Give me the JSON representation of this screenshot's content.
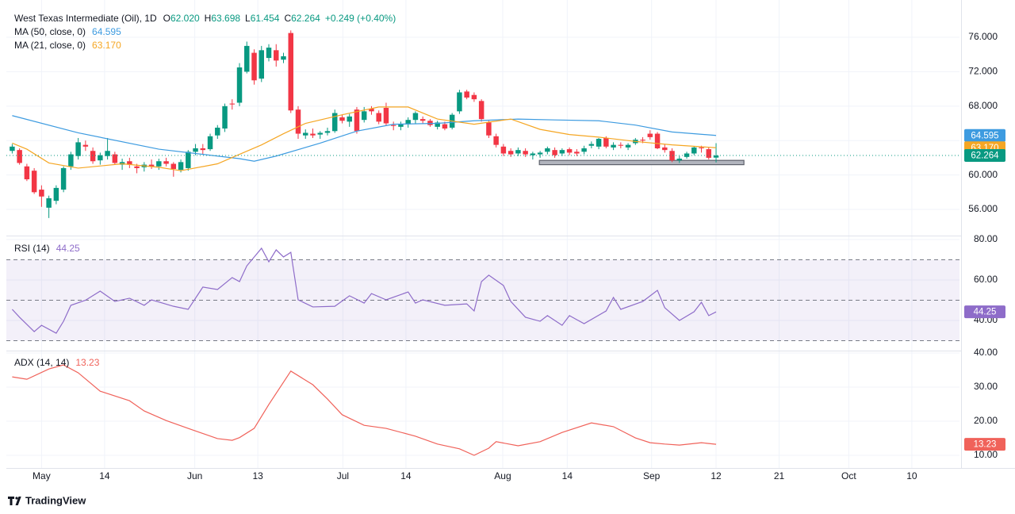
{
  "brand": "TradingView",
  "chart_data": [
    {
      "type": "candlestick",
      "title": "West Texas Intermediate (Oil), 1D",
      "ohlc_labels": [
        "O",
        "H",
        "L",
        "C"
      ],
      "ohlc_value_labels": [
        "62.020",
        "63.698",
        "61.454",
        "62.264"
      ],
      "change_label": "+0.249 (+0.40%)",
      "up_color": "#089981",
      "down_color": "#f23645",
      "x": [
        0,
        1,
        2,
        3,
        4,
        5,
        6,
        7,
        8,
        9,
        10,
        11,
        12,
        13,
        14,
        15,
        16,
        17,
        18,
        19,
        20,
        21,
        22,
        23,
        24,
        25,
        26,
        27,
        28,
        29,
        30,
        31,
        32,
        33,
        34,
        35,
        36,
        37,
        38,
        39,
        40,
        41,
        42,
        43,
        44,
        45,
        46,
        47,
        48,
        49,
        50,
        51,
        52,
        53,
        54,
        55,
        56,
        57,
        58,
        59,
        60,
        61,
        62,
        63,
        64,
        65,
        66,
        67,
        68,
        69,
        70,
        71,
        72,
        73,
        74,
        75,
        76,
        77,
        78,
        79,
        80,
        81,
        82,
        83,
        84,
        85,
        86,
        87,
        88,
        89,
        90,
        91,
        92,
        93,
        94,
        95,
        96
      ],
      "ohlc": [
        [
          62.8,
          63.6,
          62.5,
          63.3
        ],
        [
          62.9,
          63.1,
          61.2,
          61.4
        ],
        [
          61.0,
          61.3,
          59.3,
          59.5
        ],
        [
          60.5,
          60.8,
          57.8,
          58.0
        ],
        [
          58.3,
          58.8,
          56.3,
          57.5
        ],
        [
          56.2,
          57.6,
          55.0,
          57.3
        ],
        [
          57.0,
          58.8,
          56.6,
          58.5
        ],
        [
          58.3,
          61.0,
          58.0,
          60.8
        ],
        [
          61.0,
          62.7,
          60.6,
          62.4
        ],
        [
          62.2,
          64.3,
          61.8,
          63.8
        ],
        [
          63.5,
          64.0,
          62.8,
          63.3
        ],
        [
          62.8,
          63.2,
          61.3,
          61.6
        ],
        [
          61.7,
          62.6,
          61.2,
          62.3
        ],
        [
          62.2,
          64.3,
          61.8,
          62.8
        ],
        [
          62.4,
          62.7,
          61.2,
          61.4
        ],
        [
          61.2,
          61.9,
          60.6,
          61.5
        ],
        [
          61.6,
          62.0,
          60.8,
          61.2
        ],
        [
          61.0,
          61.3,
          60.2,
          60.8
        ],
        [
          60.9,
          61.5,
          60.4,
          61.2
        ],
        [
          61.2,
          61.8,
          60.7,
          61.0
        ],
        [
          61.0,
          61.9,
          60.6,
          61.6
        ],
        [
          61.6,
          62.0,
          61.0,
          61.3
        ],
        [
          61.3,
          61.5,
          59.8,
          60.7
        ],
        [
          60.6,
          61.8,
          60.3,
          61.5
        ],
        [
          60.8,
          62.9,
          60.5,
          62.7
        ],
        [
          62.7,
          63.6,
          62.3,
          63.1
        ],
        [
          63.1,
          63.6,
          62.4,
          62.9
        ],
        [
          63.0,
          64.8,
          62.8,
          64.5
        ],
        [
          64.6,
          65.8,
          64.2,
          65.5
        ],
        [
          65.4,
          68.3,
          65.0,
          68.0
        ],
        [
          68.3,
          68.8,
          67.6,
          68.2
        ],
        [
          68.4,
          73.0,
          68.0,
          72.5
        ],
        [
          72.0,
          75.5,
          71.8,
          75.0
        ],
        [
          74.2,
          74.6,
          70.5,
          71.0
        ],
        [
          71.2,
          75.0,
          70.8,
          74.5
        ],
        [
          73.6,
          75.2,
          73.2,
          74.8
        ],
        [
          74.5,
          75.2,
          72.6,
          73.3
        ],
        [
          73.4,
          74.2,
          73.0,
          73.8
        ],
        [
          76.5,
          76.8,
          67.2,
          67.5
        ],
        [
          67.6,
          68.0,
          64.2,
          64.8
        ],
        [
          64.6,
          65.3,
          64.2,
          64.9
        ],
        [
          64.8,
          65.4,
          64.3,
          64.6
        ],
        [
          64.7,
          65.1,
          64.2,
          64.9
        ],
        [
          64.9,
          65.5,
          64.6,
          65.1
        ],
        [
          65.1,
          67.6,
          64.9,
          67.2
        ],
        [
          66.7,
          67.0,
          66.0,
          66.3
        ],
        [
          66.2,
          67.1,
          65.6,
          66.8
        ],
        [
          67.6,
          67.9,
          64.8,
          65.1
        ],
        [
          66.4,
          67.9,
          66.1,
          67.4
        ],
        [
          67.7,
          68.0,
          67.0,
          67.4
        ],
        [
          67.2,
          67.5,
          65.9,
          66.2
        ],
        [
          67.8,
          68.4,
          65.7,
          66.0
        ],
        [
          65.8,
          66.2,
          65.2,
          65.7
        ],
        [
          65.6,
          66.2,
          65.2,
          65.9
        ],
        [
          65.9,
          66.7,
          65.5,
          66.4
        ],
        [
          66.4,
          67.4,
          66.0,
          67.2
        ],
        [
          66.5,
          66.8,
          66.0,
          66.3
        ],
        [
          66.3,
          66.5,
          65.6,
          65.8
        ],
        [
          65.6,
          66.3,
          65.3,
          66.1
        ],
        [
          65.9,
          66.2,
          65.2,
          65.4
        ],
        [
          65.5,
          67.2,
          65.3,
          67.0
        ],
        [
          67.4,
          69.9,
          67.1,
          69.6
        ],
        [
          69.7,
          69.9,
          68.8,
          69.0
        ],
        [
          69.3,
          69.6,
          68.5,
          68.8
        ],
        [
          68.6,
          68.8,
          66.2,
          66.5
        ],
        [
          66.1,
          66.3,
          64.3,
          64.6
        ],
        [
          64.5,
          64.8,
          63.2,
          63.5
        ],
        [
          63.3,
          63.6,
          62.2,
          62.5
        ],
        [
          62.8,
          63.1,
          62.1,
          62.4
        ],
        [
          62.5,
          63.2,
          62.2,
          62.9
        ],
        [
          62.8,
          63.1,
          62.1,
          62.4
        ],
        [
          62.3,
          62.7,
          61.8,
          62.5
        ],
        [
          62.4,
          62.8,
          62.0,
          62.6
        ],
        [
          62.7,
          63.3,
          62.4,
          63.1
        ],
        [
          62.9,
          63.2,
          62.0,
          62.3
        ],
        [
          62.5,
          63.1,
          62.2,
          62.9
        ],
        [
          63.0,
          63.2,
          62.3,
          62.6
        ],
        [
          62.7,
          63.0,
          62.2,
          62.5
        ],
        [
          62.7,
          63.4,
          62.4,
          63.1
        ],
        [
          63.4,
          63.9,
          63.1,
          63.6
        ],
        [
          63.3,
          64.3,
          63.0,
          64.2
        ],
        [
          64.3,
          64.5,
          63.1,
          63.3
        ],
        [
          63.2,
          63.8,
          62.9,
          63.5
        ],
        [
          63.5,
          63.8,
          63.1,
          63.4
        ],
        [
          63.2,
          63.7,
          62.9,
          63.5
        ],
        [
          63.7,
          64.3,
          63.5,
          64.1
        ],
        [
          64.1,
          64.4,
          63.7,
          64.0
        ],
        [
          64.8,
          65.2,
          64.1,
          64.4
        ],
        [
          64.8,
          65.0,
          63.0,
          63.1
        ],
        [
          63.2,
          63.6,
          62.6,
          62.9
        ],
        [
          62.8,
          63.1,
          61.5,
          61.7
        ],
        [
          61.7,
          62.2,
          61.4,
          61.9
        ],
        [
          62.1,
          62.7,
          61.9,
          62.5
        ],
        [
          62.5,
          63.3,
          62.3,
          63.2
        ],
        [
          63.2,
          63.4,
          62.6,
          63.1
        ],
        [
          63.0,
          63.2,
          61.8,
          62.0
        ],
        [
          62.02,
          63.698,
          61.454,
          62.264
        ]
      ],
      "series": [
        {
          "name": "MA (50, close, 0)",
          "color": "#3d9be0",
          "value_label": "64.595",
          "x": [
            0,
            9,
            20,
            31,
            33,
            36,
            42,
            47,
            52,
            58,
            63,
            69,
            74,
            80,
            85,
            90,
            96
          ],
          "values": [
            66.9,
            64.9,
            63.0,
            61.9,
            61.6,
            62.2,
            63.7,
            65.1,
            65.9,
            66.0,
            66.3,
            66.5,
            66.4,
            66.3,
            65.8,
            65.0,
            64.595
          ]
        },
        {
          "name": "MA (21, close, 0)",
          "color": "#f5a623",
          "value_label": "63.170",
          "x": [
            0,
            2,
            5,
            9,
            15,
            20,
            23,
            28,
            31,
            34,
            37,
            40,
            45,
            50,
            54,
            58,
            63,
            68,
            72,
            76,
            80,
            85,
            90,
            96
          ],
          "values": [
            63.7,
            63.0,
            61.4,
            60.8,
            61.3,
            60.9,
            60.5,
            61.3,
            62.4,
            63.5,
            64.8,
            66.0,
            67.0,
            67.9,
            67.9,
            66.5,
            65.9,
            66.5,
            65.3,
            64.7,
            64.4,
            63.9,
            63.5,
            63.17
          ]
        }
      ],
      "zone": {
        "x": [
          71.9,
          99.8
        ],
        "y": [
          61.2,
          61.7
        ]
      },
      "xlim": [
        -0.8,
        129.2
      ],
      "xticks": [
        {
          "value": 4,
          "label": "May"
        },
        {
          "value": 12.6,
          "label": "14"
        },
        {
          "value": 24.9,
          "label": "Jun"
        },
        {
          "value": 33.5,
          "label": "13"
        },
        {
          "value": 45.1,
          "label": "Jul"
        },
        {
          "value": 53.7,
          "label": "14"
        },
        {
          "value": 66.9,
          "label": "Aug"
        },
        {
          "value": 75.7,
          "label": "14"
        },
        {
          "value": 87.2,
          "label": "Sep"
        },
        {
          "value": 96,
          "label": "12"
        },
        {
          "value": 104.6,
          "label": "21"
        },
        {
          "value": 114.1,
          "label": "Oct"
        },
        {
          "value": 122.7,
          "label": "10"
        }
      ],
      "ylim": [
        52.96,
        77.57
      ],
      "yticks": [
        {
          "value": 76,
          "label": "76.000"
        },
        {
          "value": 72,
          "label": "72.000"
        },
        {
          "value": 68,
          "label": "68.000"
        },
        {
          "value": 64,
          "label": "64.000"
        },
        {
          "value": 60,
          "label": "60.000"
        },
        {
          "value": 56,
          "label": "56.000"
        }
      ],
      "grid": true
    },
    {
      "type": "line",
      "name": "RSI (14)",
      "color": "#8e6cc9",
      "value_label": "44.25",
      "x": [
        0,
        1,
        3,
        4,
        6,
        7,
        8,
        10,
        12,
        14,
        16,
        18,
        19,
        22,
        24,
        26,
        28,
        30,
        31,
        32,
        34,
        35,
        36,
        37,
        38,
        39,
        41,
        44,
        46,
        48,
        49,
        51,
        54,
        55,
        56,
        59,
        62,
        63,
        64,
        65,
        67,
        68,
        70,
        72,
        73,
        75,
        76,
        77,
        78,
        81,
        82,
        83,
        86,
        88,
        89,
        91,
        93,
        94,
        95,
        96
      ],
      "values": [
        45.5,
        41.6,
        34.5,
        37.6,
        33.7,
        39.6,
        47.5,
        50,
        54.5,
        49.4,
        51.0,
        47.5,
        50.2,
        47.0,
        45.5,
        56.5,
        55.3,
        61.2,
        59.2,
        67.0,
        75.7,
        69.0,
        74.9,
        71.4,
        73.7,
        50.2,
        46.7,
        47.0,
        52.2,
        48.6,
        53.3,
        50.2,
        54.1,
        48.6,
        50.2,
        47.5,
        48.2,
        44.7,
        59.2,
        62.4,
        57.3,
        49.4,
        41.6,
        39.6,
        42.4,
        37.6,
        42.4,
        40.4,
        38.4,
        44.7,
        51.4,
        45.5,
        49.4,
        54.9,
        46.3,
        40.0,
        44.3,
        49.0,
        42.4,
        44.25
      ],
      "bands": [
        30,
        50,
        70
      ],
      "ylim": [
        25.1,
        81.57
      ],
      "yticks": [
        {
          "value": 80,
          "label": "80.00"
        },
        {
          "value": 60,
          "label": "60.00"
        },
        {
          "value": 40,
          "label": "40.00"
        }
      ],
      "grid": true
    },
    {
      "type": "line",
      "name": "ADX (14, 14)",
      "color": "#f0625a",
      "value_label": "13.23",
      "x": [
        0,
        2,
        5,
        7,
        9,
        12,
        16,
        18,
        21,
        24,
        28,
        30,
        31,
        33,
        35,
        38,
        41,
        43,
        45,
        48,
        51,
        55,
        58,
        61,
        63,
        65,
        66,
        69,
        72,
        75,
        79,
        82,
        85,
        87,
        89,
        91,
        94,
        96
      ],
      "values": [
        33,
        32.3,
        35.3,
        36.5,
        34.2,
        28.8,
        26,
        23,
        20.2,
        17.9,
        14.9,
        14.4,
        15.2,
        17.9,
        24.9,
        34.7,
        30.7,
        26.5,
        21.9,
        18.8,
        17.9,
        15.6,
        13.3,
        11.9,
        10,
        12.1,
        14,
        12.8,
        14,
        16.7,
        19.5,
        18.4,
        15.1,
        13.7,
        13.3,
        13,
        13.7,
        13.23
      ],
      "ylim": [
        6.28,
        40.47
      ],
      "yticks": [
        {
          "value": 40,
          "label": "40.00"
        },
        {
          "value": 30,
          "label": "30.00"
        },
        {
          "value": 20,
          "label": "20.00"
        },
        {
          "value": 10,
          "label": "10.00"
        }
      ],
      "grid": true
    }
  ]
}
